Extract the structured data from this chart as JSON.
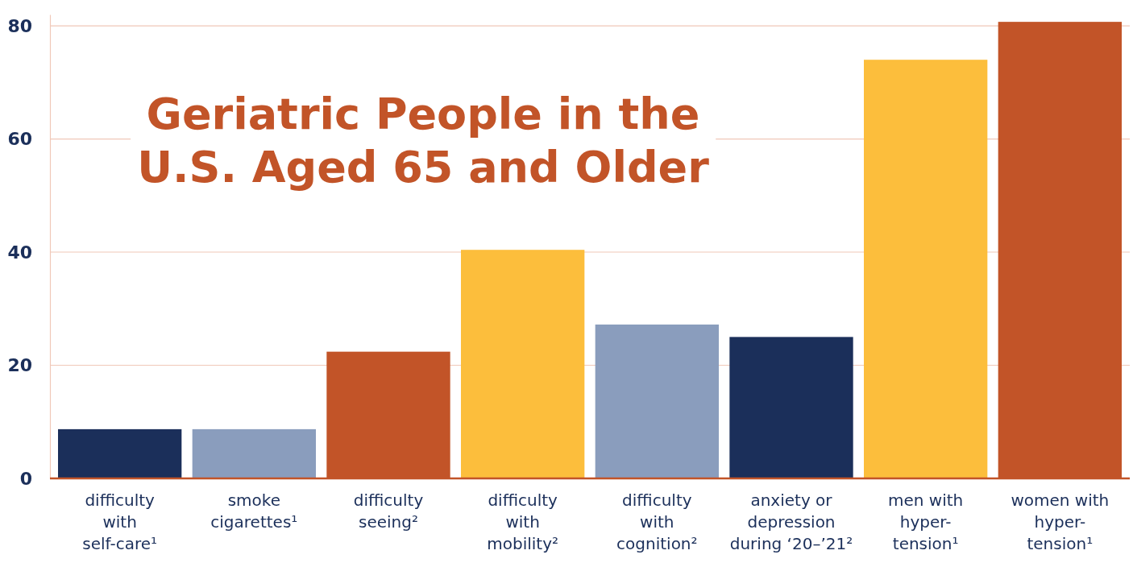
{
  "chart_data": {
    "type": "bar",
    "title": "Geriatric People in the\nU.S. Aged 65 and Older",
    "categories": [
      "difficulty\nwith\nself-care¹",
      "smoke\ncigarettes¹",
      "difficulty\nseeing²",
      "difficulty\nwith\nmobility²",
      "difficulty\nwith\ncognition²",
      "anxiety or\ndepression\nduring ‘20–’21²",
      "men with\nhyper-\ntension¹",
      "women with\nhyper-\ntension¹"
    ],
    "values": [
      8.7,
      8.7,
      22.4,
      40.4,
      27.2,
      25,
      74,
      80.7
    ],
    "colors": [
      "#1b2f5a",
      "#8a9dbd",
      "#c25428",
      "#fcbe3c",
      "#8a9dbd",
      "#1b2f5a",
      "#fcbe3c",
      "#c25428"
    ],
    "ylim": [
      0,
      82
    ],
    "yticks": [
      0,
      20,
      40,
      60,
      80
    ],
    "grid": "y"
  }
}
